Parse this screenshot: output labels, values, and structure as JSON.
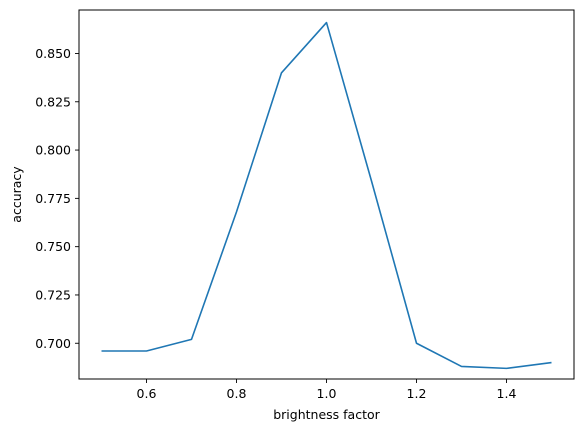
{
  "chart_data": {
    "type": "line",
    "title": "",
    "xlabel": "brightness factor",
    "ylabel": "accuracy",
    "xlim": [
      0.45,
      1.55
    ],
    "ylim": [
      0.6815,
      0.8725
    ],
    "xticks": [
      0.6,
      0.8,
      1.0,
      1.2,
      1.4
    ],
    "xtick_labels": [
      "0.6",
      "0.8",
      "1.0",
      "1.2",
      "1.4"
    ],
    "yticks": [
      0.7,
      0.725,
      0.75,
      0.775,
      0.8,
      0.825,
      0.85
    ],
    "ytick_labels": [
      "0.700",
      "0.725",
      "0.750",
      "0.775",
      "0.800",
      "0.825",
      "0.850"
    ],
    "grid": false,
    "legend": false,
    "series": [
      {
        "color": "#1f77b4",
        "x": [
          0.5,
          0.6,
          0.7,
          0.8,
          0.9,
          1.0,
          1.1,
          1.2,
          1.3,
          1.4,
          1.5
        ],
        "y": [
          0.696,
          0.696,
          0.702,
          0.768,
          0.84,
          0.866,
          0.784,
          0.7,
          0.688,
          0.687,
          0.69
        ]
      }
    ]
  }
}
